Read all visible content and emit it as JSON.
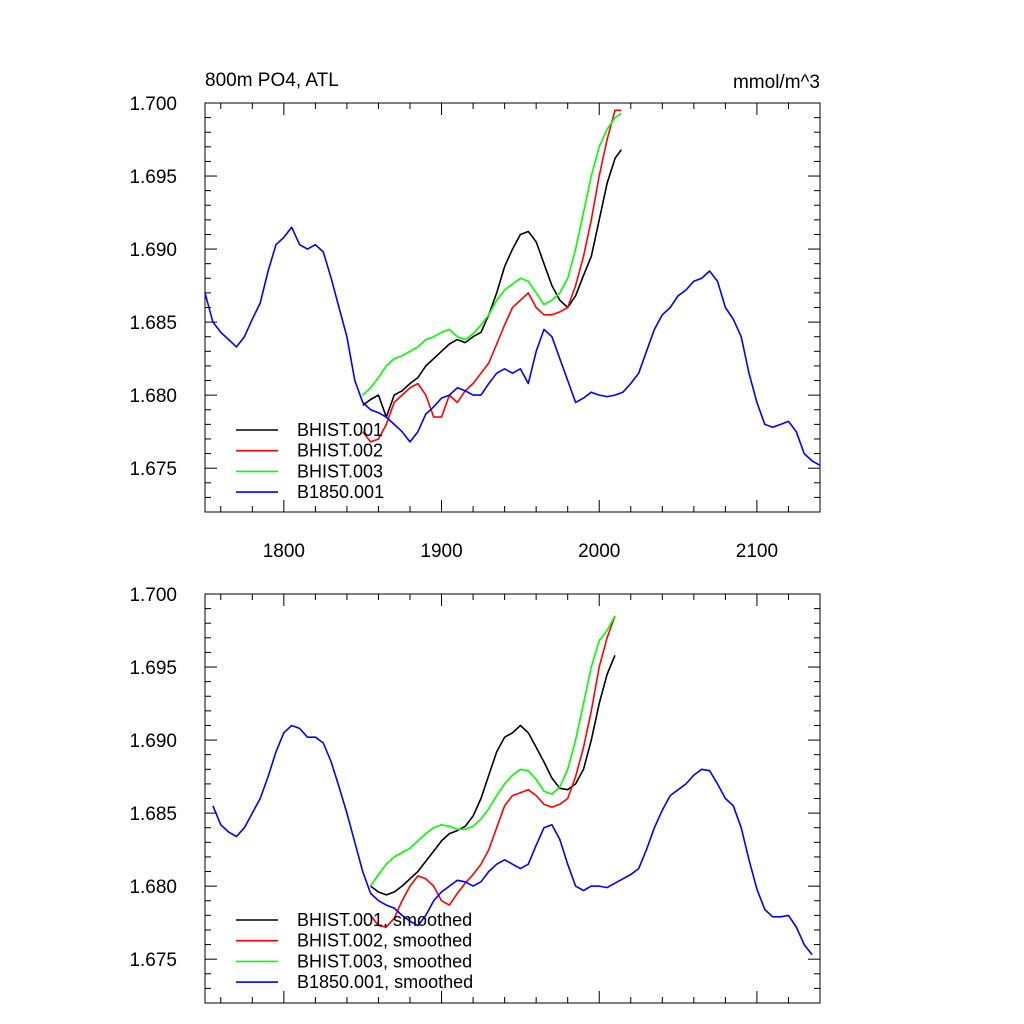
{
  "figure": {
    "title_left": "800m PO4, ATL",
    "title_right": "mmol/m^3"
  },
  "chart_data": [
    {
      "type": "line",
      "title": "800m PO4, ATL",
      "units": "mmol/m^3",
      "xlim": [
        1750,
        2140
      ],
      "ylim": [
        1.672,
        1.7
      ],
      "x_ticks": [
        1800,
        1900,
        2000,
        2100
      ],
      "x_tick_labels": [
        "1800",
        "1900",
        "2000",
        "2100"
      ],
      "y_ticks": [
        1.675,
        1.68,
        1.685,
        1.69,
        1.695,
        1.7
      ],
      "y_tick_labels": [
        "1.675",
        "1.680",
        "1.685",
        "1.690",
        "1.695",
        "1.700"
      ],
      "grid": false,
      "legend_position": "bottom-left",
      "series": [
        {
          "name": "BHIST.001",
          "color": "#000000",
          "x": [
            1850,
            1855,
            1860,
            1865,
            1870,
            1875,
            1880,
            1885,
            1890,
            1895,
            1900,
            1905,
            1910,
            1915,
            1920,
            1925,
            1930,
            1935,
            1940,
            1945,
            1950,
            1955,
            1960,
            1965,
            1970,
            1975,
            1980,
            1985,
            1990,
            1995,
            2000,
            2005,
            2010,
            2014
          ],
          "y": [
            1.6793,
            1.6797,
            1.68,
            1.6785,
            1.68,
            1.6803,
            1.6808,
            1.6812,
            1.682,
            1.6825,
            1.683,
            1.6835,
            1.6838,
            1.6836,
            1.684,
            1.6843,
            1.6855,
            1.687,
            1.6888,
            1.69,
            1.691,
            1.6912,
            1.6905,
            1.689,
            1.6875,
            1.6865,
            1.686,
            1.6868,
            1.6882,
            1.6895,
            1.692,
            1.6945,
            1.6962,
            1.6968
          ]
        },
        {
          "name": "BHIST.002",
          "color": "#ff0000",
          "x": [
            1850,
            1855,
            1860,
            1865,
            1870,
            1875,
            1880,
            1885,
            1890,
            1895,
            1900,
            1905,
            1910,
            1915,
            1920,
            1925,
            1930,
            1935,
            1940,
            1945,
            1950,
            1955,
            1960,
            1965,
            1970,
            1975,
            1980,
            1985,
            1990,
            1995,
            2000,
            2005,
            2010,
            2014
          ],
          "y": [
            1.6775,
            1.6768,
            1.677,
            1.678,
            1.6795,
            1.68,
            1.6805,
            1.6808,
            1.68,
            1.6785,
            1.6785,
            1.68,
            1.6795,
            1.6803,
            1.6808,
            1.6815,
            1.6822,
            1.6835,
            1.6848,
            1.686,
            1.6865,
            1.687,
            1.686,
            1.6855,
            1.6855,
            1.6857,
            1.686,
            1.6875,
            1.6895,
            1.692,
            1.695,
            1.6975,
            1.6995,
            1.6995
          ]
        },
        {
          "name": "BHIST.003",
          "color": "#00ff00",
          "x": [
            1850,
            1855,
            1860,
            1865,
            1870,
            1875,
            1880,
            1885,
            1890,
            1895,
            1900,
            1905,
            1910,
            1915,
            1920,
            1925,
            1930,
            1935,
            1940,
            1945,
            1950,
            1955,
            1960,
            1965,
            1970,
            1975,
            1980,
            1985,
            1990,
            1995,
            2000,
            2005,
            2010,
            2014
          ],
          "y": [
            1.68,
            1.6805,
            1.6812,
            1.682,
            1.6825,
            1.6827,
            1.683,
            1.6833,
            1.6838,
            1.684,
            1.6843,
            1.6845,
            1.684,
            1.6838,
            1.6842,
            1.6848,
            1.6855,
            1.6865,
            1.6872,
            1.6876,
            1.688,
            1.6878,
            1.687,
            1.6862,
            1.6865,
            1.687,
            1.688,
            1.69,
            1.6925,
            1.695,
            1.697,
            1.6982,
            1.699,
            1.6993
          ]
        },
        {
          "name": "B1850.001",
          "color": "#0000ff",
          "x": [
            1750,
            1755,
            1760,
            1765,
            1770,
            1775,
            1780,
            1785,
            1790,
            1795,
            1800,
            1805,
            1810,
            1815,
            1820,
            1825,
            1830,
            1835,
            1840,
            1845,
            1850,
            1855,
            1860,
            1865,
            1870,
            1875,
            1880,
            1885,
            1890,
            1895,
            1900,
            1905,
            1910,
            1915,
            1920,
            1925,
            1930,
            1935,
            1940,
            1945,
            1950,
            1955,
            1960,
            1965,
            1970,
            1975,
            1980,
            1985,
            1990,
            1995,
            2000,
            2005,
            2010,
            2015,
            2020,
            2025,
            2030,
            2035,
            2040,
            2045,
            2050,
            2055,
            2060,
            2065,
            2070,
            2075,
            2080,
            2085,
            2090,
            2095,
            2100,
            2105,
            2110,
            2115,
            2120,
            2125,
            2130,
            2135,
            2140
          ],
          "y": [
            1.687,
            1.685,
            1.6843,
            1.6838,
            1.6833,
            1.684,
            1.6852,
            1.6863,
            1.6885,
            1.6903,
            1.6908,
            1.6915,
            1.6903,
            1.69,
            1.6903,
            1.6898,
            1.688,
            1.686,
            1.684,
            1.681,
            1.6795,
            1.679,
            1.6788,
            1.6785,
            1.678,
            1.6775,
            1.6768,
            1.6775,
            1.6787,
            1.6792,
            1.6798,
            1.68,
            1.6805,
            1.6803,
            1.68,
            1.68,
            1.6808,
            1.6815,
            1.6818,
            1.6815,
            1.6818,
            1.6808,
            1.683,
            1.6845,
            1.684,
            1.6825,
            1.681,
            1.6795,
            1.6798,
            1.6802,
            1.68,
            1.6799,
            1.68,
            1.6802,
            1.6808,
            1.6815,
            1.683,
            1.6845,
            1.6855,
            1.686,
            1.6868,
            1.6872,
            1.6878,
            1.688,
            1.6885,
            1.6878,
            1.686,
            1.6852,
            1.684,
            1.6815,
            1.6795,
            1.678,
            1.6778,
            1.678,
            1.6782,
            1.6775,
            1.676,
            1.6755,
            1.6752
          ]
        }
      ]
    },
    {
      "type": "line",
      "xlim": [
        1750,
        2140
      ],
      "ylim": [
        1.672,
        1.7
      ],
      "x_ticks": [
        1800,
        1900,
        2000,
        2100
      ],
      "x_tick_labels": [],
      "y_ticks": [
        1.675,
        1.68,
        1.685,
        1.69,
        1.695,
        1.7
      ],
      "y_tick_labels": [
        "1.675",
        "1.680",
        "1.685",
        "1.690",
        "1.695",
        "1.700"
      ],
      "grid": false,
      "legend_position": "bottom-left",
      "series": [
        {
          "name": "BHIST.001, smoothed",
          "color": "#000000",
          "x": [
            1855,
            1860,
            1865,
            1870,
            1875,
            1880,
            1885,
            1890,
            1895,
            1900,
            1905,
            1910,
            1915,
            1920,
            1925,
            1930,
            1935,
            1940,
            1945,
            1950,
            1955,
            1960,
            1965,
            1970,
            1975,
            1980,
            1985,
            1990,
            1995,
            2000,
            2005,
            2010
          ],
          "y": [
            1.68,
            1.6796,
            1.6794,
            1.6796,
            1.68,
            1.6805,
            1.681,
            1.6817,
            1.6824,
            1.6831,
            1.6836,
            1.6838,
            1.6841,
            1.6848,
            1.686,
            1.6876,
            1.6892,
            1.6902,
            1.6905,
            1.691,
            1.6905,
            1.6895,
            1.6885,
            1.6874,
            1.6867,
            1.6866,
            1.687,
            1.688,
            1.69,
            1.6925,
            1.6945,
            1.6958
          ]
        },
        {
          "name": "BHIST.002, smoothed",
          "color": "#ff0000",
          "x": [
            1855,
            1860,
            1865,
            1870,
            1875,
            1880,
            1885,
            1890,
            1895,
            1900,
            1905,
            1910,
            1915,
            1920,
            1925,
            1930,
            1935,
            1940,
            1945,
            1950,
            1955,
            1960,
            1965,
            1970,
            1975,
            1980,
            1985,
            1990,
            1995,
            2000,
            2005,
            2010
          ],
          "y": [
            1.678,
            1.6773,
            1.6772,
            1.6778,
            1.679,
            1.68,
            1.6807,
            1.6805,
            1.68,
            1.679,
            1.6787,
            1.6795,
            1.6802,
            1.6808,
            1.6815,
            1.6825,
            1.684,
            1.6855,
            1.6862,
            1.6864,
            1.6866,
            1.6862,
            1.6856,
            1.6854,
            1.6856,
            1.686,
            1.6875,
            1.6895,
            1.692,
            1.695,
            1.697,
            1.6985
          ]
        },
        {
          "name": "BHIST.003, smoothed",
          "color": "#00ff00",
          "x": [
            1855,
            1860,
            1865,
            1870,
            1875,
            1880,
            1885,
            1890,
            1895,
            1900,
            1905,
            1910,
            1915,
            1920,
            1925,
            1930,
            1935,
            1940,
            1945,
            1950,
            1955,
            1960,
            1965,
            1970,
            1975,
            1980,
            1985,
            1990,
            1995,
            2000,
            2005,
            2010
          ],
          "y": [
            1.68,
            1.6808,
            1.6815,
            1.682,
            1.6823,
            1.6826,
            1.6831,
            1.6836,
            1.684,
            1.6842,
            1.6841,
            1.6839,
            1.6839,
            1.6841,
            1.6846,
            1.6853,
            1.6862,
            1.687,
            1.6876,
            1.688,
            1.6879,
            1.6873,
            1.6865,
            1.6863,
            1.6868,
            1.688,
            1.69,
            1.6925,
            1.695,
            1.6968,
            1.6975,
            1.6985
          ]
        },
        {
          "name": "B1850.001, smoothed",
          "color": "#0000ff",
          "x": [
            1755,
            1760,
            1765,
            1770,
            1775,
            1780,
            1785,
            1790,
            1795,
            1800,
            1805,
            1810,
            1815,
            1820,
            1825,
            1830,
            1835,
            1840,
            1845,
            1850,
            1855,
            1860,
            1865,
            1870,
            1875,
            1880,
            1885,
            1890,
            1895,
            1900,
            1905,
            1910,
            1915,
            1920,
            1925,
            1930,
            1935,
            1940,
            1945,
            1950,
            1955,
            1960,
            1965,
            1970,
            1975,
            1980,
            1985,
            1990,
            1995,
            2000,
            2005,
            2010,
            2015,
            2020,
            2025,
            2030,
            2035,
            2040,
            2045,
            2050,
            2055,
            2060,
            2065,
            2070,
            2075,
            2080,
            2085,
            2090,
            2095,
            2100,
            2105,
            2110,
            2115,
            2120,
            2125,
            2130,
            2135
          ],
          "y": [
            1.6855,
            1.6842,
            1.6837,
            1.6834,
            1.684,
            1.685,
            1.686,
            1.6875,
            1.6892,
            1.6905,
            1.691,
            1.6908,
            1.6902,
            1.6902,
            1.6898,
            1.6885,
            1.6868,
            1.685,
            1.683,
            1.681,
            1.6795,
            1.679,
            1.6787,
            1.6785,
            1.678,
            1.6776,
            1.6773,
            1.678,
            1.679,
            1.6796,
            1.68,
            1.6804,
            1.6803,
            1.68,
            1.6803,
            1.681,
            1.6815,
            1.6818,
            1.6815,
            1.6812,
            1.6815,
            1.6828,
            1.684,
            1.6842,
            1.6832,
            1.6815,
            1.68,
            1.6797,
            1.68,
            1.68,
            1.6799,
            1.6802,
            1.6805,
            1.6808,
            1.6812,
            1.6825,
            1.684,
            1.6852,
            1.6862,
            1.6866,
            1.687,
            1.6876,
            1.688,
            1.6879,
            1.687,
            1.686,
            1.6855,
            1.684,
            1.6818,
            1.6798,
            1.6784,
            1.6779,
            1.6779,
            1.678,
            1.6772,
            1.676,
            1.6753
          ]
        }
      ]
    }
  ]
}
